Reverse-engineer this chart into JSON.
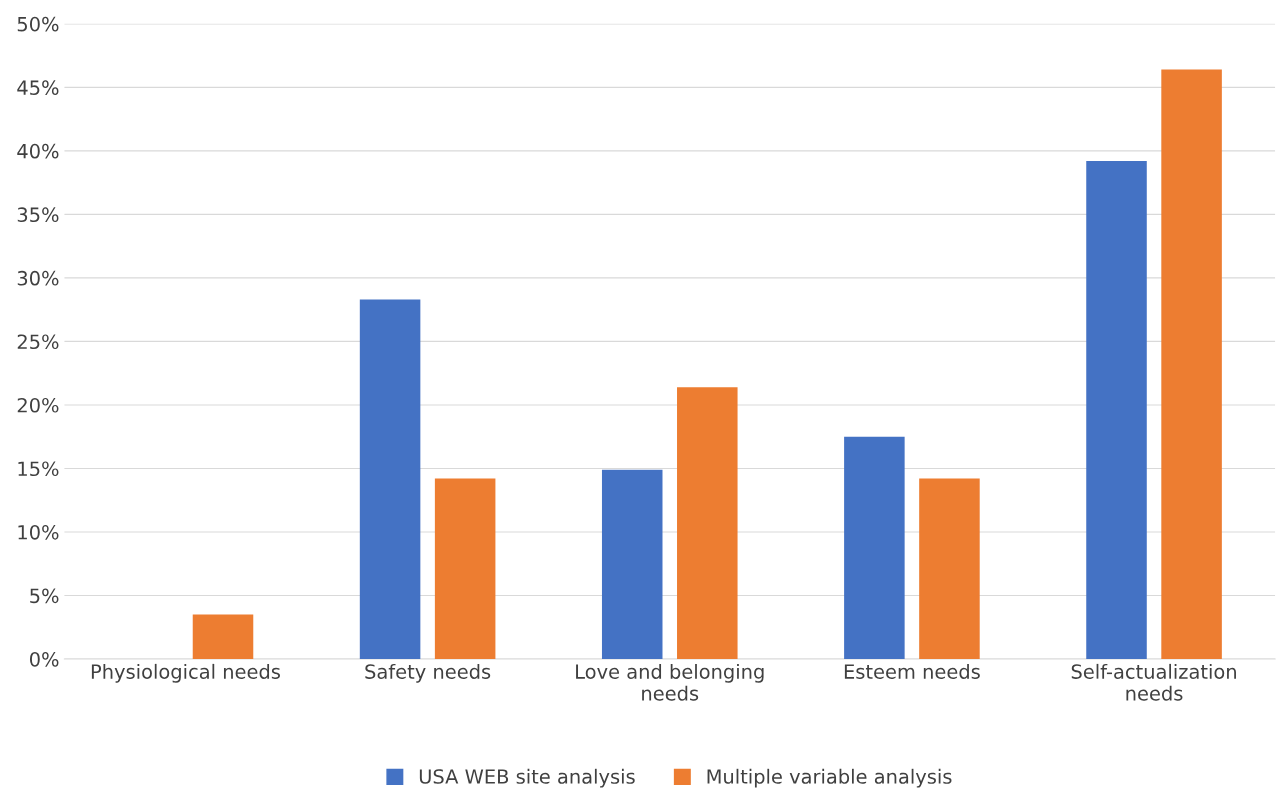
{
  "chart_data": {
    "type": "bar",
    "categories": [
      "Physiological needs",
      "Safety needs",
      "Love and belonging\nneeds",
      "Esteem needs",
      "Self-actualization\nneeds"
    ],
    "series": [
      {
        "name": "USA WEB site analysis",
        "color": "#4472c4",
        "values": [
          null,
          28.3,
          14.9,
          17.5,
          39.2
        ]
      },
      {
        "name": "Multiple variable analysis",
        "color": "#ed7d31",
        "values": [
          3.5,
          14.2,
          21.4,
          14.2,
          46.4
        ]
      }
    ],
    "ylim": [
      0,
      50
    ],
    "yticks": [
      {
        "value": 0,
        "label": "0%"
      },
      {
        "value": 5,
        "label": "5%"
      },
      {
        "value": 10,
        "label": "10%"
      },
      {
        "value": 15,
        "label": "15%"
      },
      {
        "value": 20,
        "label": "20%"
      },
      {
        "value": 25,
        "label": "25%"
      },
      {
        "value": 30,
        "label": "30%"
      },
      {
        "value": 35,
        "label": "35%"
      },
      {
        "value": 40,
        "label": "40%"
      },
      {
        "value": 45,
        "label": "45%"
      },
      {
        "value": 50,
        "label": "50%"
      }
    ],
    "grid": "y",
    "legend": "bottom"
  }
}
